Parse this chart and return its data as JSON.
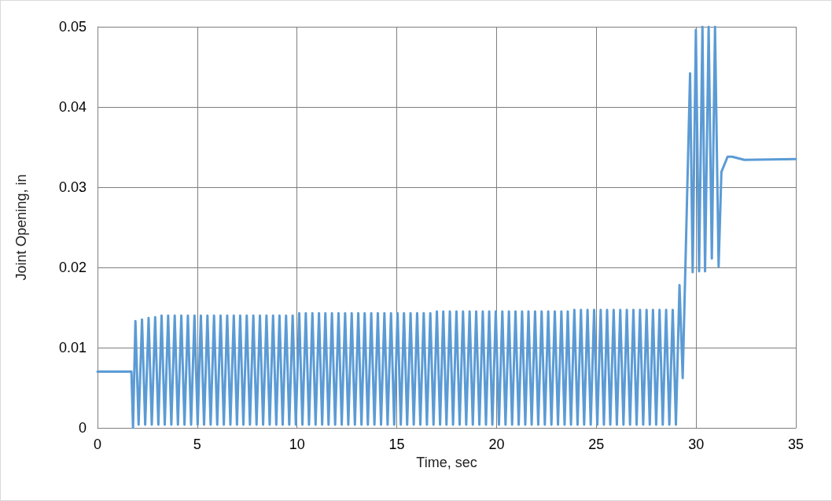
{
  "chart_data": {
    "type": "line",
    "xlabel": "Time, sec",
    "ylabel": "Joint Opening, in",
    "xlim": [
      0,
      35
    ],
    "xticks": [
      0,
      5,
      10,
      15,
      20,
      25,
      30,
      35
    ],
    "ylim": [
      0,
      0.05
    ],
    "yticks": [
      0,
      0.01,
      0.02,
      0.03,
      0.04,
      0.05
    ],
    "grid": true,
    "marker": "none",
    "line_style": "solid",
    "series": [
      {
        "color": "#5b9bd5",
        "x": [
          0,
          1.7,
          1.78,
          1.9,
          2.06,
          2.23,
          2.39,
          2.56,
          2.72,
          2.89,
          3.05,
          3.21,
          3.37,
          3.54,
          3.7,
          3.87,
          4.03,
          4.2,
          4.36,
          4.53,
          4.69,
          4.86,
          5.02,
          5.18,
          5.34,
          5.51,
          5.67,
          5.84,
          6.0,
          6.17,
          6.33,
          6.5,
          6.66,
          6.83,
          6.99,
          7.15,
          7.31,
          7.48,
          7.64,
          7.81,
          7.97,
          8.14,
          8.3,
          8.47,
          8.63,
          8.8,
          8.96,
          9.12,
          9.28,
          9.45,
          9.61,
          9.78,
          9.94,
          10.11,
          10.27,
          10.44,
          10.6,
          10.77,
          10.93,
          11.1,
          11.26,
          11.42,
          11.58,
          11.75,
          11.91,
          12.08,
          12.24,
          12.41,
          12.57,
          12.74,
          12.9,
          13.07,
          13.23,
          13.39,
          13.55,
          13.72,
          13.88,
          14.05,
          14.21,
          14.38,
          14.54,
          14.71,
          14.87,
          15.04,
          15.2,
          15.36,
          15.52,
          15.69,
          15.85,
          16.02,
          16.18,
          16.35,
          16.51,
          16.68,
          16.84,
          17.01,
          17.17,
          17.33,
          17.49,
          17.66,
          17.82,
          17.99,
          18.15,
          18.32,
          18.48,
          18.65,
          18.81,
          18.98,
          19.14,
          19.31,
          19.47,
          19.63,
          19.79,
          19.96,
          20.12,
          20.29,
          20.45,
          20.62,
          20.78,
          20.95,
          21.11,
          21.28,
          21.44,
          21.6,
          21.76,
          21.93,
          22.09,
          22.26,
          22.42,
          22.59,
          22.75,
          22.92,
          23.08,
          23.25,
          23.41,
          23.57,
          23.73,
          23.9,
          24.06,
          24.23,
          24.39,
          24.56,
          24.72,
          24.89,
          25.05,
          25.22,
          25.38,
          25.54,
          25.7,
          25.87,
          26.03,
          26.2,
          26.36,
          26.53,
          26.69,
          26.86,
          27.02,
          27.19,
          27.35,
          27.52,
          27.68,
          27.84,
          28.0,
          28.17,
          28.33,
          28.5,
          28.66,
          28.83,
          28.99,
          29.17,
          29.33,
          29.7,
          29.83,
          29.99,
          30.15,
          30.32,
          30.45,
          30.63,
          30.79,
          30.95,
          31.13,
          31.27,
          31.58,
          31.81,
          32.42,
          35
        ],
        "values": [
          0.007,
          0.007,
          0,
          0.0133,
          0.0004,
          0.0135,
          0.0004,
          0.0137,
          0.0004,
          0.0138,
          0.0004,
          0.014,
          0.0004,
          0.014,
          0.0004,
          0.014,
          0.0004,
          0.014,
          0.0004,
          0.014,
          0.0004,
          0.014,
          0.0004,
          0.014,
          0.0004,
          0.014,
          0.0004,
          0.014,
          0.0004,
          0.014,
          0.0004,
          0.014,
          0.0004,
          0.014,
          0.0004,
          0.014,
          0.0004,
          0.014,
          0.0004,
          0.014,
          0.0004,
          0.014,
          0.0004,
          0.014,
          0.0004,
          0.014,
          0.0004,
          0.014,
          0.0004,
          0.014,
          0.0004,
          0.014,
          0.0004,
          0.0143,
          0.0004,
          0.0143,
          0.0004,
          0.0143,
          0.0004,
          0.0143,
          0.0004,
          0.0143,
          0.0004,
          0.0143,
          0.0004,
          0.0143,
          0.0004,
          0.0143,
          0.0004,
          0.0143,
          0.0004,
          0.0143,
          0.0004,
          0.0143,
          0.0004,
          0.0143,
          0.0004,
          0.0143,
          0.0004,
          0.0143,
          0.0004,
          0.0143,
          0.0004,
          0.0143,
          0.0004,
          0.0143,
          0.0004,
          0.0143,
          0.0004,
          0.0143,
          0.0004,
          0.0143,
          0.0004,
          0.0143,
          0.0004,
          0.0145,
          0.0004,
          0.0145,
          0.0004,
          0.0145,
          0.0004,
          0.0145,
          0.0004,
          0.0145,
          0.0004,
          0.0145,
          0.0004,
          0.0145,
          0.0004,
          0.0145,
          0.0004,
          0.0145,
          0.0004,
          0.0145,
          0.0004,
          0.0145,
          0.0004,
          0.0145,
          0.0004,
          0.0145,
          0.0004,
          0.0145,
          0.0004,
          0.0145,
          0.0004,
          0.0145,
          0.0004,
          0.0145,
          0.0004,
          0.0145,
          0.0004,
          0.0145,
          0.0004,
          0.0145,
          0.0004,
          0.0145,
          0.0004,
          0.0147,
          0.0004,
          0.0147,
          0.0004,
          0.0147,
          0.0004,
          0.0147,
          0.0004,
          0.0147,
          0.0004,
          0.0147,
          0.0004,
          0.0147,
          0.0004,
          0.0147,
          0.0004,
          0.0147,
          0.0004,
          0.0147,
          0.0004,
          0.0147,
          0.0004,
          0.0147,
          0.0004,
          0.0147,
          0.0004,
          0.0147,
          0.0004,
          0.0147,
          0.0004,
          0.0147,
          0.0004,
          0.0178,
          0.0062,
          0.0442,
          0.0194,
          0.0496,
          0.0195,
          0.05,
          0.0195,
          0.05,
          0.0211,
          0.05,
          0.0201,
          0.0319,
          0.0338,
          0.0338,
          0.0334,
          0.0335
        ]
      }
    ]
  }
}
